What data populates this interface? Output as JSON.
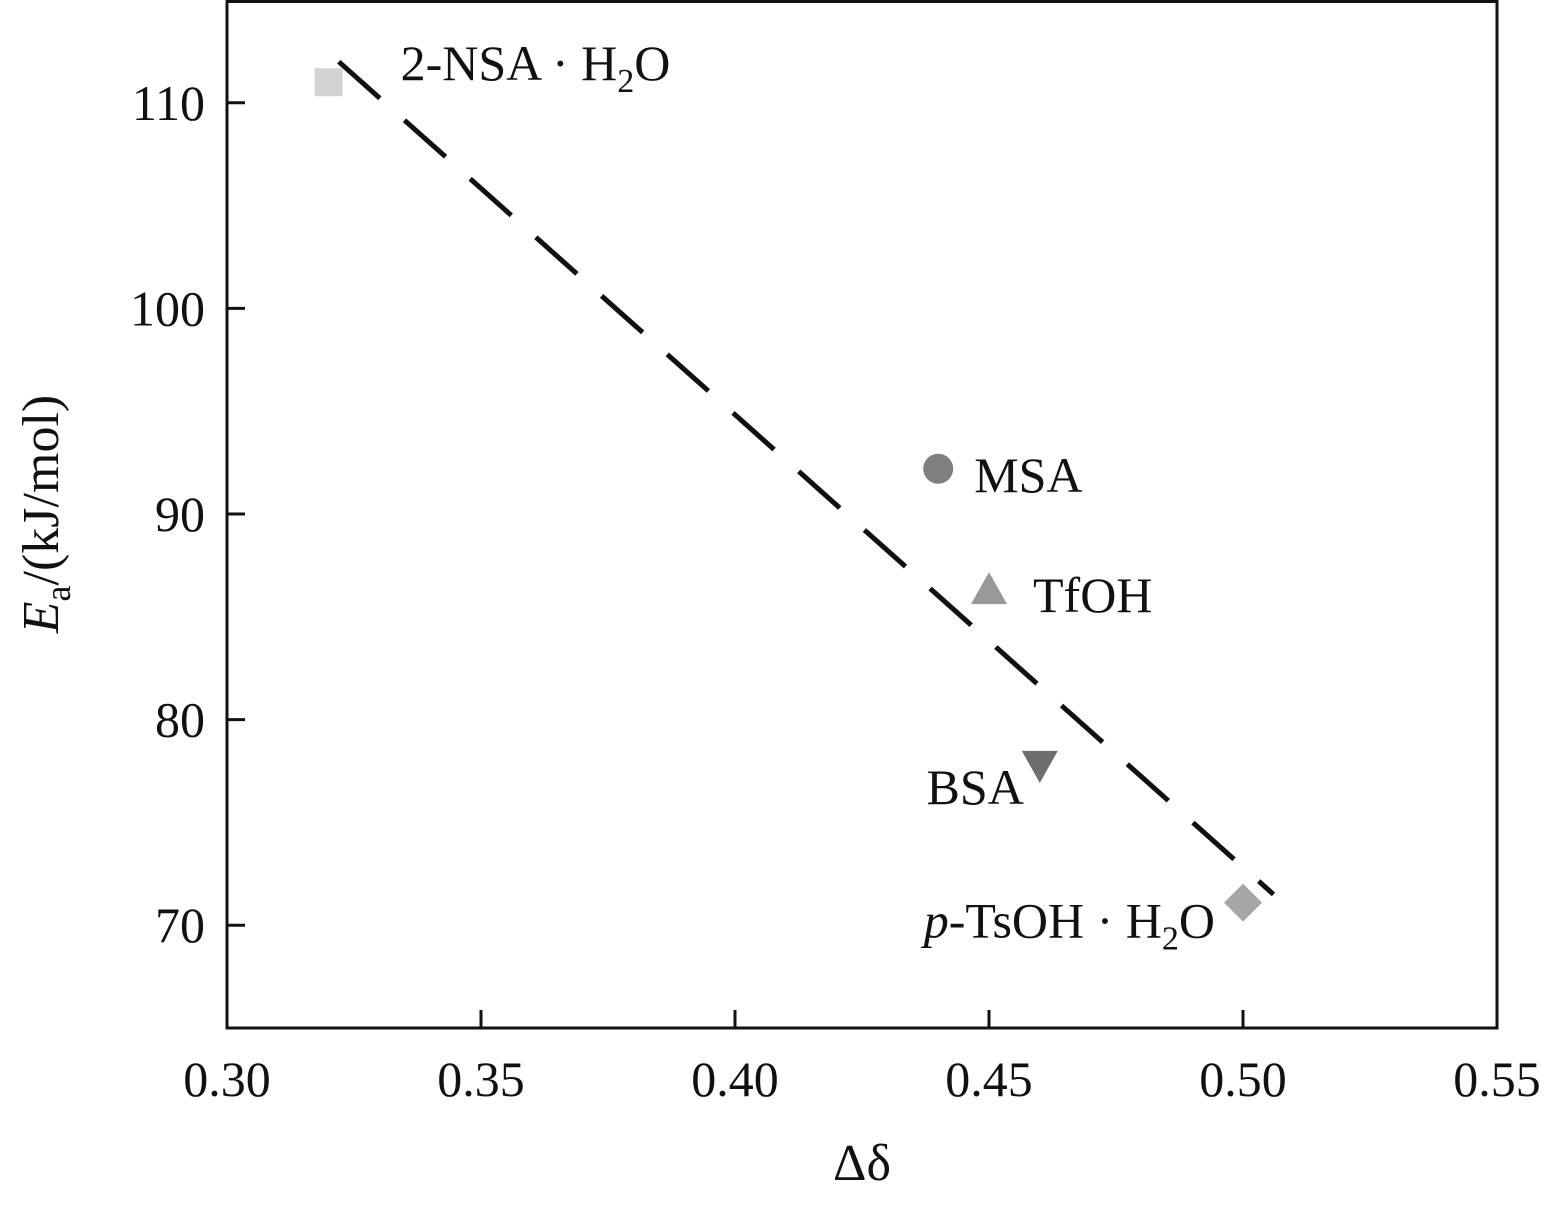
{
  "chart_data": {
    "type": "scatter",
    "title": "",
    "xlabel": "Δδ",
    "ylabel": "E_a/(kJ/mol)",
    "ylabel_parts": {
      "symbol": "E",
      "subscript": "a",
      "unit": "/(kJ/mol)"
    },
    "xlim": [
      0.3,
      0.55
    ],
    "ylim": [
      65,
      115
    ],
    "x_ticks": [
      0.3,
      0.35,
      0.4,
      0.45,
      0.5,
      0.55
    ],
    "x_tick_labels": [
      "0.30",
      "0.35",
      "0.40",
      "0.45",
      "0.50",
      "0.55"
    ],
    "y_ticks": [
      70,
      80,
      90,
      100,
      110
    ],
    "y_tick_labels": [
      "70",
      "80",
      "90",
      "100",
      "110"
    ],
    "grid": false,
    "legend": "none",
    "series": [
      {
        "label_parts": {
          "pre": "",
          "italic": "",
          "main": "2-NSA · H",
          "sub": "2",
          "post": "O"
        },
        "x": 0.32,
        "y": 111,
        "marker": "square",
        "color": "#d3d3d3"
      },
      {
        "label_parts": {
          "pre": "",
          "italic": "",
          "main": "MSA",
          "sub": "",
          "post": ""
        },
        "x": 0.44,
        "y": 92.2,
        "marker": "circle",
        "color": "#7f7f7f"
      },
      {
        "label_parts": {
          "pre": "",
          "italic": "",
          "main": "TfOH",
          "sub": "",
          "post": ""
        },
        "x": 0.45,
        "y": 86.3,
        "marker": "triangle-up",
        "color": "#999999"
      },
      {
        "label_parts": {
          "pre": "",
          "italic": "",
          "main": "BSA",
          "sub": "",
          "post": ""
        },
        "x": 0.46,
        "y": 77.8,
        "marker": "triangle-down",
        "color": "#6e6e6e"
      },
      {
        "label_parts": {
          "pre": "",
          "italic": "p",
          "main": "-TsOH · H",
          "sub": "2",
          "post": "O"
        },
        "x": 0.5,
        "y": 71.1,
        "marker": "diamond",
        "color": "#a6a6a6"
      }
    ],
    "fit_line": {
      "style": "dashed",
      "x": [
        0.322,
        0.506
      ],
      "y": [
        112,
        71.5
      ],
      "color": "#111111"
    }
  }
}
